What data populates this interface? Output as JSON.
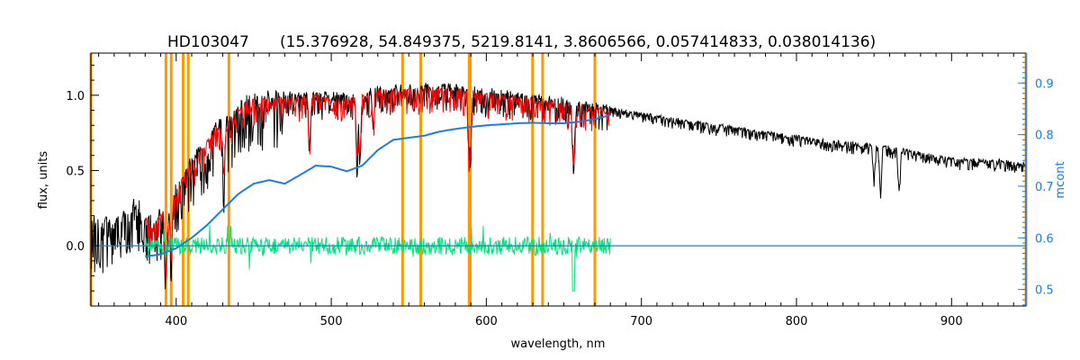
{
  "chart_data": {
    "type": "line",
    "title_object": "HD103047",
    "title_params": "(15.376928, 54.849375, 5219.8141, 3.8606566, 0.057414833, 0.038014136)",
    "xlabel": "wavelength, nm",
    "ylabel": "flux, units",
    "ylabel_right": "mcont",
    "xlim": [
      345,
      948
    ],
    "ylim": [
      -0.4,
      1.28
    ],
    "ylim_right": [
      0.468,
      0.958
    ],
    "x_ticks": [
      400,
      500,
      600,
      700,
      800,
      900
    ],
    "y_ticks": [
      0.0,
      0.5,
      1.0
    ],
    "y_tick_labels": [
      "0.0",
      "0.5",
      "1.0"
    ],
    "y_right_ticks": [
      0.5,
      0.6,
      0.7,
      0.8,
      0.9
    ],
    "y_right_tick_labels": [
      "0.5",
      "0.6",
      "0.7",
      "0.8",
      "0.9"
    ],
    "grid": false,
    "colors": {
      "observed": "#000000",
      "model": "#ff0000",
      "residual": "#00e676",
      "continuum": "#1e7be6",
      "mask": "#ff9900",
      "axis": "#000000",
      "right_axis": "#1e7be6"
    },
    "mask_lines": [
      345,
      393.4,
      396.8,
      404.5,
      407.8,
      434.0,
      546.0,
      557.7,
      588.9,
      589.6,
      629.8,
      636.3,
      670.0,
      948
    ],
    "continuum": {
      "x": [
        380,
        390,
        400,
        410,
        420,
        430,
        440,
        450,
        460,
        470,
        480,
        490,
        500,
        510,
        520,
        530,
        540,
        550,
        560,
        570,
        580,
        590,
        600,
        610,
        620,
        630,
        640,
        650,
        660,
        670,
        680
      ],
      "y": [
        0.564,
        0.568,
        0.58,
        0.6,
        0.625,
        0.655,
        0.685,
        0.705,
        0.712,
        0.705,
        0.722,
        0.74,
        0.738,
        0.729,
        0.74,
        0.77,
        0.79,
        0.794,
        0.798,
        0.806,
        0.811,
        0.815,
        0.818,
        0.82,
        0.822,
        0.823,
        0.822,
        0.822,
        0.825,
        0.83,
        0.838
      ]
    },
    "observed_envelope": {
      "x": [
        345,
        360,
        375,
        385,
        395,
        405,
        415,
        425,
        435,
        445,
        455,
        470,
        490,
        510,
        530,
        550,
        570,
        590,
        610,
        630,
        650,
        680,
        700,
        740,
        780,
        820,
        860,
        900,
        930,
        948
      ],
      "y": [
        0.2,
        0.18,
        0.3,
        0.15,
        0.3,
        0.5,
        0.65,
        0.8,
        0.85,
        0.98,
        1.0,
        1.01,
        1.02,
        1.0,
        1.05,
        1.06,
        1.07,
        1.05,
        1.02,
        1.0,
        0.97,
        0.92,
        0.88,
        0.82,
        0.76,
        0.7,
        0.66,
        0.58,
        0.57,
        0.55
      ]
    },
    "model_range": [
      380,
      680
    ],
    "residual_range": [
      380,
      680
    ],
    "residual_baseline": 0.0
  }
}
